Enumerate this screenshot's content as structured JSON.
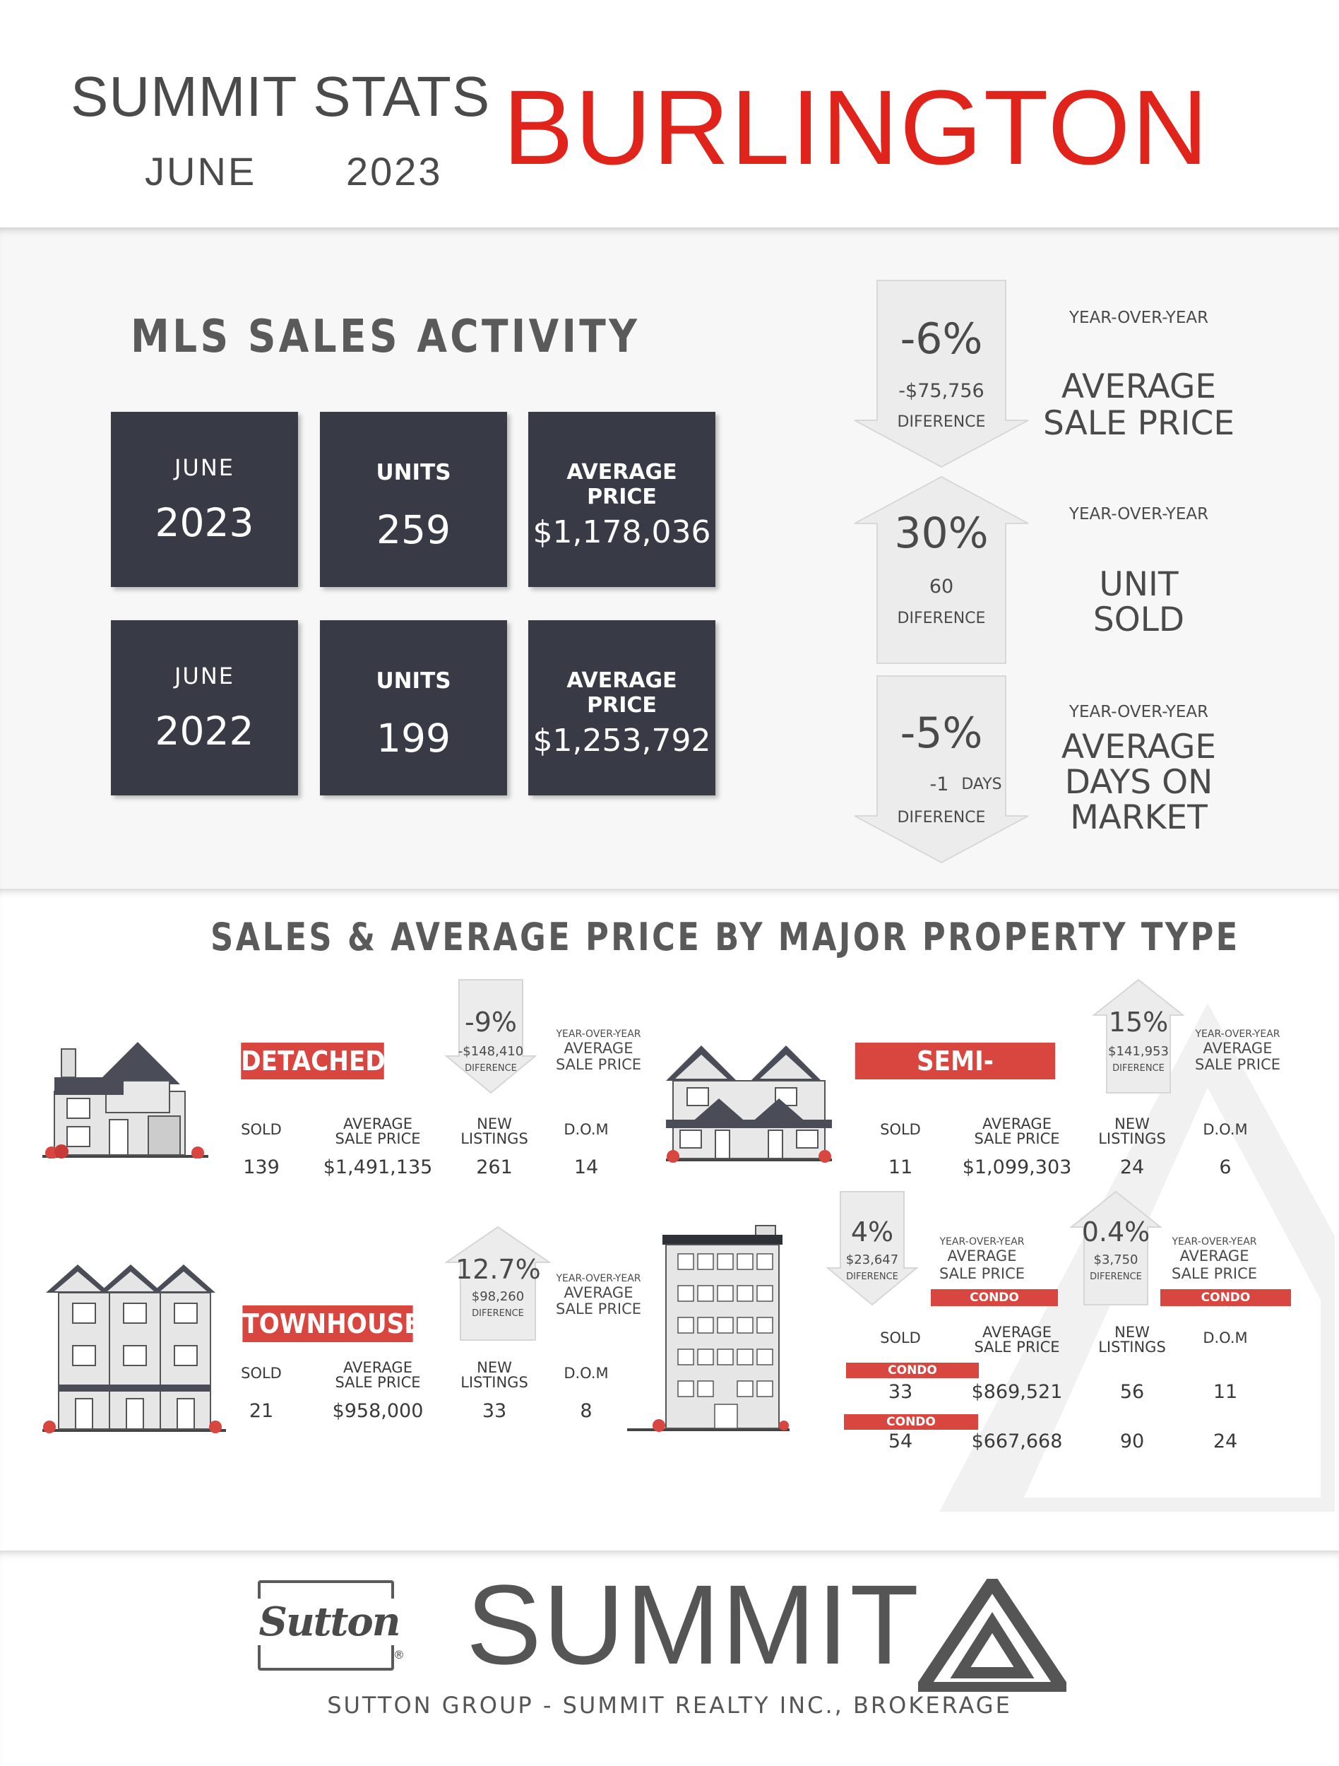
{
  "header": {
    "title_line": "SUMMIT STATS",
    "month": "JUNE",
    "year": "2023",
    "city": "BURLINGTON"
  },
  "colors": {
    "accent_red": "#e0241b",
    "tag_red": "#d9453f",
    "dark_box": "#383a45",
    "text_gray": "#4a4a4a"
  },
  "mls": {
    "heading": "MLS SALES ACTIVITY",
    "rows": [
      {
        "month": "JUNE",
        "year": "2023",
        "units_label": "UNITS",
        "units": "259",
        "price_label": "AVERAGE PRICE",
        "price": "$1,178,036"
      },
      {
        "month": "JUNE",
        "year": "2022",
        "units_label": "UNITS",
        "units": "199",
        "price_label": "AVERAGE PRICE",
        "price": "$1,253,792"
      }
    ]
  },
  "yoy_stats": [
    {
      "direction": "down",
      "percent": "-6%",
      "diff": "-$75,756",
      "diff_label": "DIFERENCE",
      "yoy": "YEAR-OVER-YEAR",
      "title_1": "AVERAGE",
      "title_2": "SALE PRICE",
      "title_3": ""
    },
    {
      "direction": "up",
      "percent": "30%",
      "diff": "60",
      "diff_label": "DIFERENCE",
      "yoy": "YEAR-OVER-YEAR",
      "title_1": "UNIT",
      "title_2": "SOLD",
      "title_3": ""
    },
    {
      "direction": "down",
      "percent": "-5%",
      "diff": "-1",
      "diff_unit": "DAYS",
      "diff_label": "DIFERENCE",
      "yoy": "YEAR-OVER-YEAR",
      "title_1": "AVERAGE",
      "title_2": "DAYS ON",
      "title_3": "MARKET"
    }
  ],
  "property": {
    "heading": "SALES & AVERAGE PRICE BY MAJOR PROPERTY TYPE",
    "col_labels": {
      "sold": "SOLD",
      "avg_1": "AVERAGE",
      "avg_2": "SALE PRICE",
      "new_1": "NEW",
      "new_2": "LISTINGS",
      "dom": "D.O.M"
    },
    "yoy_small": "YEAR-OVER-YEAR",
    "avg_small_1": "AVERAGE",
    "avg_small_2": "SALE PRICE",
    "diff_label": "DIFERENCE",
    "detached": {
      "name": "DETACHED",
      "direction": "down",
      "percent": "-9%",
      "diff": "-$148,410",
      "sold": "139",
      "avg": "$1,491,135",
      "new": "261",
      "dom": "14"
    },
    "semi": {
      "name": "SEMI-DETACHED",
      "direction": "up",
      "percent": "15%",
      "diff": "$141,953",
      "sold": "11",
      "avg": "$1,099,303",
      "new": "24",
      "dom": "6"
    },
    "townhouse": {
      "name": "TOWNHOUSE",
      "direction": "up",
      "percent": "12.7%",
      "diff": "$98,260",
      "sold": "21",
      "avg": "$958,000",
      "new": "33",
      "dom": "8"
    },
    "condo_townhouse": {
      "name": "CONDO TOWNHOUSE",
      "direction": "down",
      "percent": "4%",
      "diff": "$23,647",
      "sold": "33",
      "avg": "$869,521",
      "new": "56",
      "dom": "11"
    },
    "condo_apartment": {
      "name": "CONDO APARTMENT",
      "direction": "up",
      "percent": "0.4%",
      "diff": "$3,750",
      "sold": "54",
      "avg": "$667,668",
      "new": "90",
      "dom": "24"
    }
  },
  "footer": {
    "sutton_logo": "Sutton",
    "registered": "®",
    "brand": "SUMMIT",
    "brokerage": "SUTTON GROUP - SUMMIT REALTY INC., BROKERAGE"
  }
}
